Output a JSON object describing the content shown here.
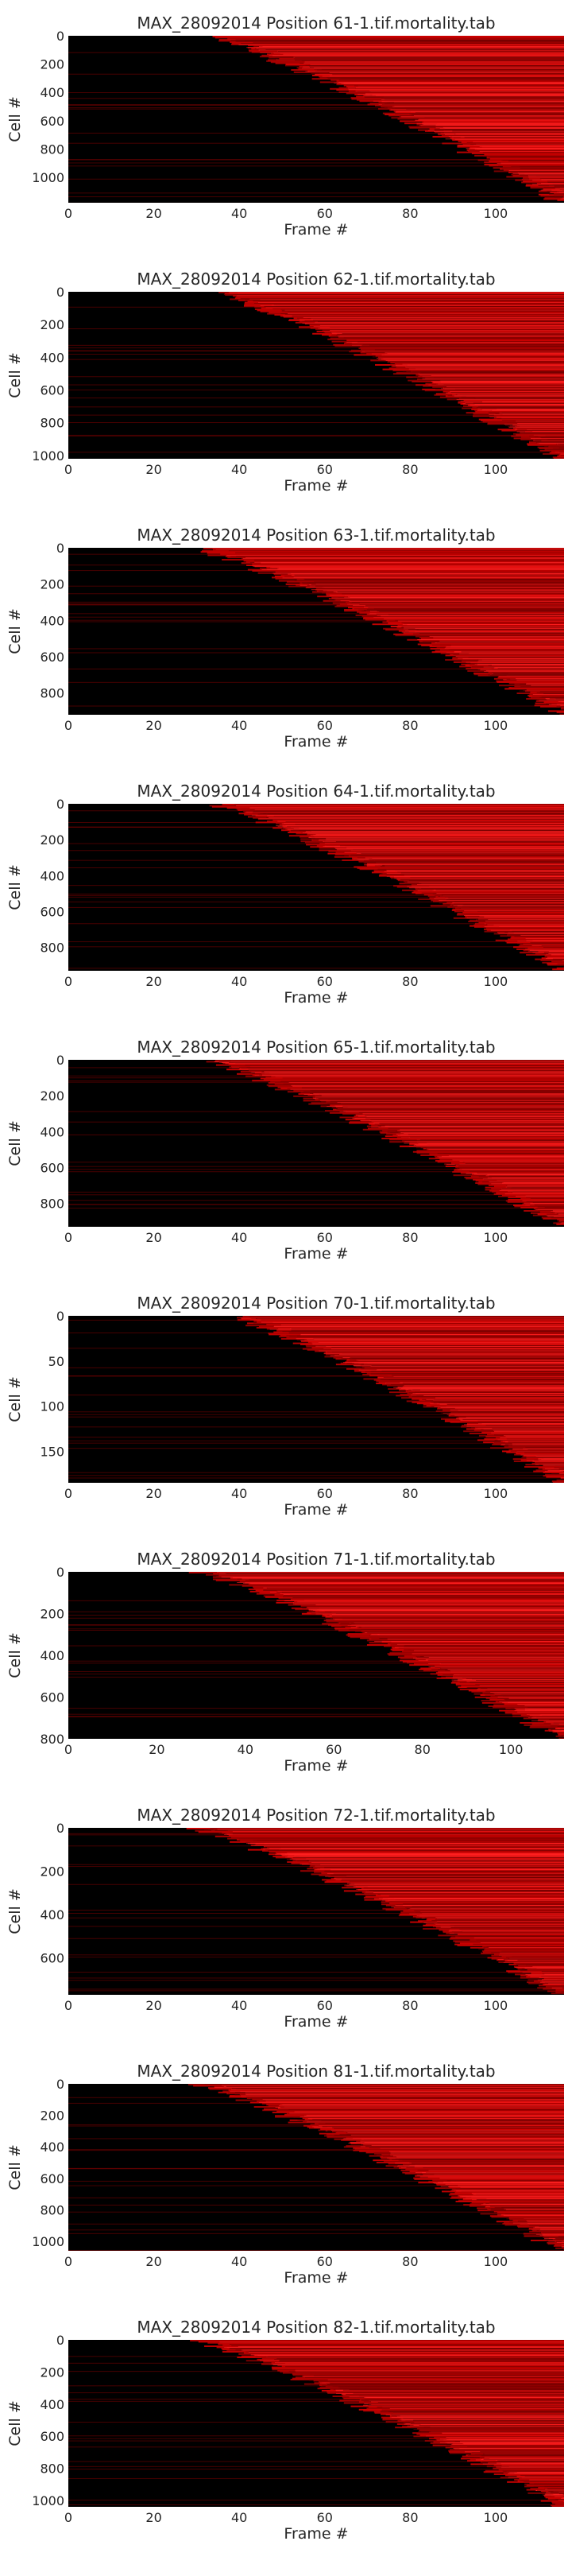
{
  "chart_data": [
    {
      "type": "heatmap",
      "title": "MAX_28092014 Position 61-1.tif.mortality.tab",
      "xlabel": "Frame #",
      "ylabel": "Cell #",
      "xlim": [
        0,
        116
      ],
      "ylim": [
        1180,
        0
      ],
      "xticks": [
        0,
        20,
        40,
        60,
        80,
        100
      ],
      "yticks": [
        0,
        200,
        400,
        600,
        800,
        1000
      ],
      "colormap": [
        "#000000",
        "#ff0000"
      ],
      "death_frame_range": [
        33,
        116
      ],
      "n_cells": 1180
    },
    {
      "type": "heatmap",
      "title": "MAX_28092014 Position 62-1.tif.mortality.tab",
      "xlabel": "Frame #",
      "ylabel": "Cell #",
      "xlim": [
        0,
        116
      ],
      "ylim": [
        1020,
        0
      ],
      "xticks": [
        0,
        20,
        40,
        60,
        80,
        100
      ],
      "yticks": [
        0,
        200,
        400,
        600,
        800,
        1000
      ],
      "colormap": [
        "#000000",
        "#ff0000"
      ],
      "death_frame_range": [
        34,
        116
      ],
      "n_cells": 1020
    },
    {
      "type": "heatmap",
      "title": "MAX_28092014 Position 63-1.tif.mortality.tab",
      "xlabel": "Frame #",
      "ylabel": "Cell #",
      "xlim": [
        0,
        116
      ],
      "ylim": [
        920,
        0
      ],
      "xticks": [
        0,
        20,
        40,
        60,
        80,
        100
      ],
      "yticks": [
        0,
        200,
        400,
        600,
        800
      ],
      "colormap": [
        "#000000",
        "#ff0000"
      ],
      "death_frame_range": [
        30,
        116
      ],
      "n_cells": 920
    },
    {
      "type": "heatmap",
      "title": "MAX_28092014 Position 64-1.tif.mortality.tab",
      "xlabel": "Frame #",
      "ylabel": "Cell #",
      "xlim": [
        0,
        116
      ],
      "ylim": [
        930,
        0
      ],
      "xticks": [
        0,
        20,
        40,
        60,
        80,
        100
      ],
      "yticks": [
        0,
        200,
        400,
        600,
        800
      ],
      "colormap": [
        "#000000",
        "#ff0000"
      ],
      "death_frame_range": [
        34,
        116
      ],
      "n_cells": 930
    },
    {
      "type": "heatmap",
      "title": "MAX_28092014 Position 65-1.tif.mortality.tab",
      "xlabel": "Frame #",
      "ylabel": "Cell #",
      "xlim": [
        0,
        116
      ],
      "ylim": [
        930,
        0
      ],
      "xticks": [
        0,
        20,
        40,
        60,
        80,
        100
      ],
      "yticks": [
        0,
        200,
        400,
        600,
        800
      ],
      "colormap": [
        "#000000",
        "#ff0000"
      ],
      "death_frame_range": [
        32,
        116
      ],
      "n_cells": 930
    },
    {
      "type": "heatmap",
      "title": "MAX_28092014 Position 70-1.tif.mortality.tab",
      "xlabel": "Frame #",
      "ylabel": "Cell #",
      "xlim": [
        0,
        116
      ],
      "ylim": [
        185,
        0
      ],
      "xticks": [
        0,
        20,
        40,
        60,
        80,
        100
      ],
      "yticks": [
        0,
        50,
        100,
        150
      ],
      "colormap": [
        "#000000",
        "#ff0000"
      ],
      "death_frame_range": [
        38,
        116
      ],
      "n_cells": 185
    },
    {
      "type": "heatmap",
      "title": "MAX_28092014 Position 71-1.tif.mortality.tab",
      "xlabel": "Frame #",
      "ylabel": "Cell #",
      "xlim": [
        0,
        112
      ],
      "ylim": [
        800,
        0
      ],
      "xticks": [
        0,
        20,
        40,
        60,
        80,
        100
      ],
      "yticks": [
        0,
        200,
        400,
        600,
        800
      ],
      "colormap": [
        "#000000",
        "#ff0000"
      ],
      "death_frame_range": [
        30,
        112
      ],
      "n_cells": 800
    },
    {
      "type": "heatmap",
      "title": "MAX_28092014 Position 72-1.tif.mortality.tab",
      "xlabel": "Frame #",
      "ylabel": "Cell #",
      "xlim": [
        0,
        116
      ],
      "ylim": [
        770,
        0
      ],
      "xticks": [
        0,
        20,
        40,
        60,
        80,
        100
      ],
      "yticks": [
        0,
        200,
        400,
        600
      ],
      "colormap": [
        "#000000",
        "#ff0000"
      ],
      "death_frame_range": [
        30,
        116
      ],
      "n_cells": 770
    },
    {
      "type": "heatmap",
      "title": "MAX_28092014 Position 81-1.tif.mortality.tab",
      "xlabel": "Frame #",
      "ylabel": "Cell #",
      "xlim": [
        0,
        116
      ],
      "ylim": [
        1060,
        0
      ],
      "xticks": [
        0,
        20,
        40,
        60,
        80,
        100
      ],
      "yticks": [
        0,
        200,
        400,
        600,
        800,
        1000
      ],
      "colormap": [
        "#000000",
        "#ff0000"
      ],
      "death_frame_range": [
        30,
        116
      ],
      "n_cells": 1060
    },
    {
      "type": "heatmap",
      "title": "MAX_28092014 Position 82-1.tif.mortality.tab",
      "xlabel": "Frame #",
      "ylabel": "Cell #",
      "xlim": [
        0,
        116
      ],
      "ylim": [
        1040,
        0
      ],
      "xticks": [
        0,
        20,
        40,
        60,
        80,
        100
      ],
      "yticks": [
        0,
        200,
        400,
        600,
        800,
        1000
      ],
      "colormap": [
        "#000000",
        "#ff0000"
      ],
      "death_frame_range": [
        30,
        116
      ],
      "n_cells": 1040
    }
  ]
}
